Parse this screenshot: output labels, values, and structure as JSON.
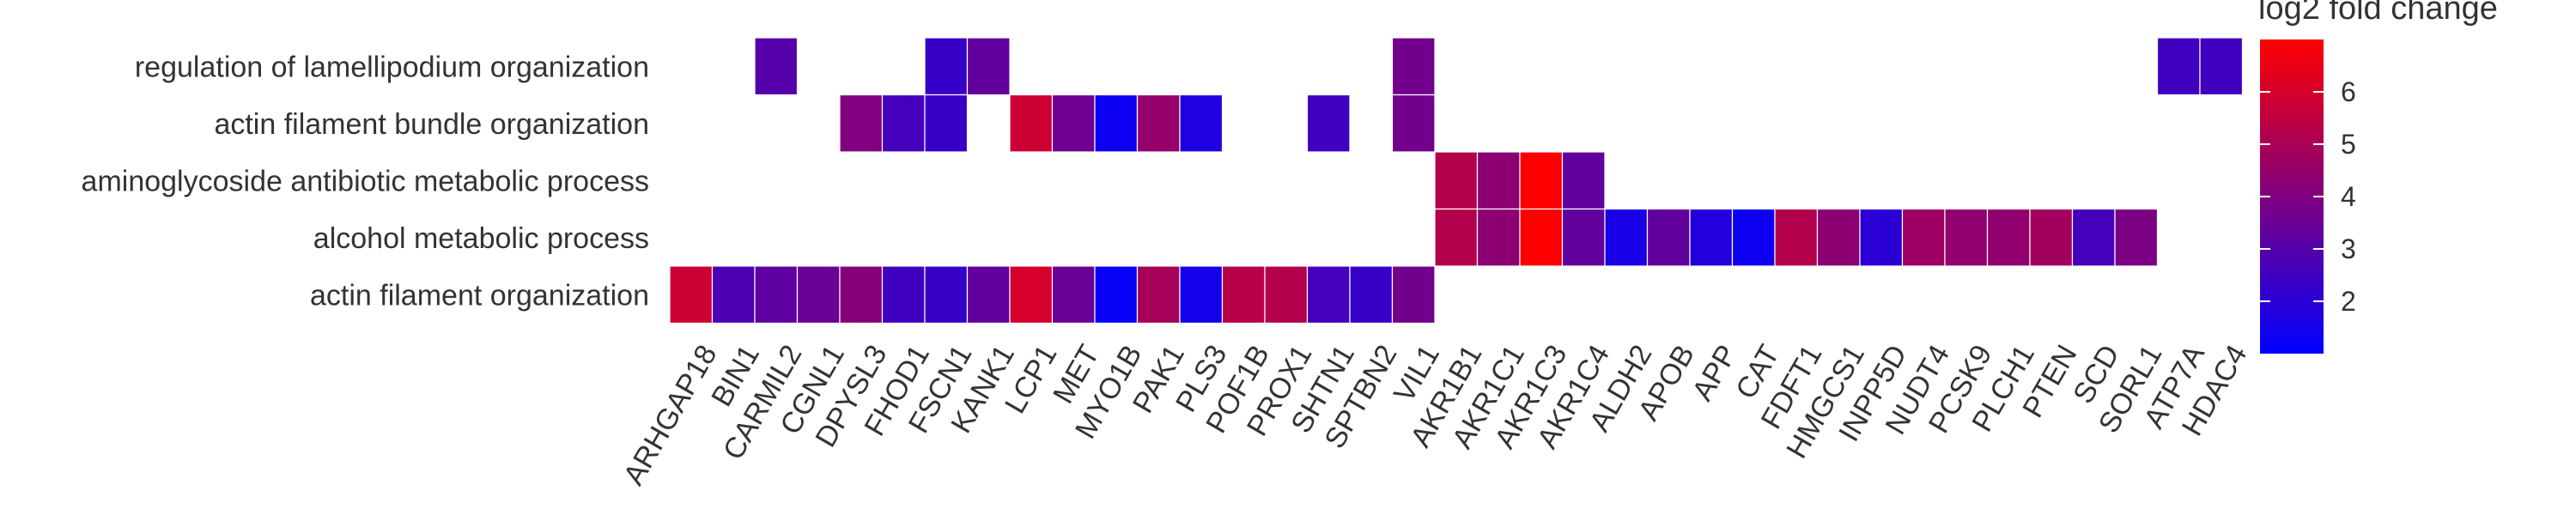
{
  "chart_data": {
    "type": "heatmap",
    "title": "",
    "xlabel": "",
    "ylabel": "",
    "rows": [
      "regulation of lamellipodium organization",
      "actin filament bundle organization",
      "aminoglycoside antibiotic metabolic process",
      "alcohol metabolic process",
      "actin filament organization"
    ],
    "columns": [
      "ARHGAP18",
      "BIN1",
      "CARMIL2",
      "CGNL1",
      "DPYSL3",
      "FHOD1",
      "FSCN1",
      "KANK1",
      "LCP1",
      "MET",
      "MYO1B",
      "PAK1",
      "PLS3",
      "POF1B",
      "PROX1",
      "SHTN1",
      "SPTBN2",
      "VIL1",
      "AKR1B1",
      "AKR1C1",
      "AKR1C3",
      "AKR1C4",
      "ALDH2",
      "APOB",
      "APP",
      "CAT",
      "FDFT1",
      "HMGCS1",
      "INPP5D",
      "NUDT4",
      "PCSK9",
      "PLCH1",
      "PTEN",
      "SCD",
      "SORL1",
      "ATP7A",
      "HDAC4"
    ],
    "values": [
      [
        null,
        null,
        3.0,
        null,
        null,
        null,
        2.3,
        3.3,
        null,
        null,
        null,
        null,
        null,
        null,
        null,
        null,
        null,
        3.7,
        null,
        null,
        null,
        null,
        null,
        null,
        null,
        null,
        null,
        null,
        null,
        null,
        null,
        null,
        null,
        null,
        null,
        2.5,
        2.5
      ],
      [
        null,
        null,
        null,
        null,
        4.0,
        2.6,
        2.3,
        null,
        5.8,
        3.6,
        1.3,
        4.5,
        1.7,
        null,
        null,
        2.5,
        null,
        3.7,
        null,
        null,
        null,
        null,
        null,
        null,
        null,
        null,
        null,
        null,
        null,
        null,
        null,
        null,
        null,
        null,
        null,
        null,
        null
      ],
      [
        null,
        null,
        null,
        null,
        null,
        null,
        null,
        null,
        null,
        null,
        null,
        null,
        null,
        null,
        null,
        null,
        null,
        null,
        5.2,
        4.3,
        7.0,
        3.3,
        null,
        null,
        null,
        null,
        null,
        null,
        null,
        null,
        null,
        null,
        null,
        null,
        null,
        null,
        null
      ],
      [
        null,
        null,
        null,
        null,
        null,
        null,
        null,
        null,
        null,
        null,
        null,
        null,
        null,
        null,
        null,
        null,
        null,
        null,
        5.2,
        4.3,
        7.0,
        3.3,
        1.6,
        3.3,
        1.8,
        1.3,
        5.2,
        4.3,
        2.0,
        4.7,
        4.4,
        4.4,
        4.8,
        2.6,
        3.9,
        null,
        null
      ],
      [
        5.8,
        2.8,
        3.2,
        3.5,
        4.2,
        2.5,
        2.3,
        3.3,
        6.0,
        3.5,
        1.2,
        4.9,
        1.5,
        5.3,
        5.2,
        2.6,
        2.3,
        3.7,
        null,
        null,
        null,
        null,
        null,
        null,
        null,
        null,
        null,
        null,
        null,
        null,
        null,
        null,
        null,
        null,
        null,
        null,
        null
      ]
    ],
    "colorbar": {
      "title": "log2 fold change",
      "min": 1,
      "max": 7,
      "ticks": [
        2,
        3,
        4,
        5,
        6
      ],
      "colors": [
        "#0000ff",
        "#ff0000"
      ]
    },
    "grid": false,
    "legend_position": "right"
  }
}
